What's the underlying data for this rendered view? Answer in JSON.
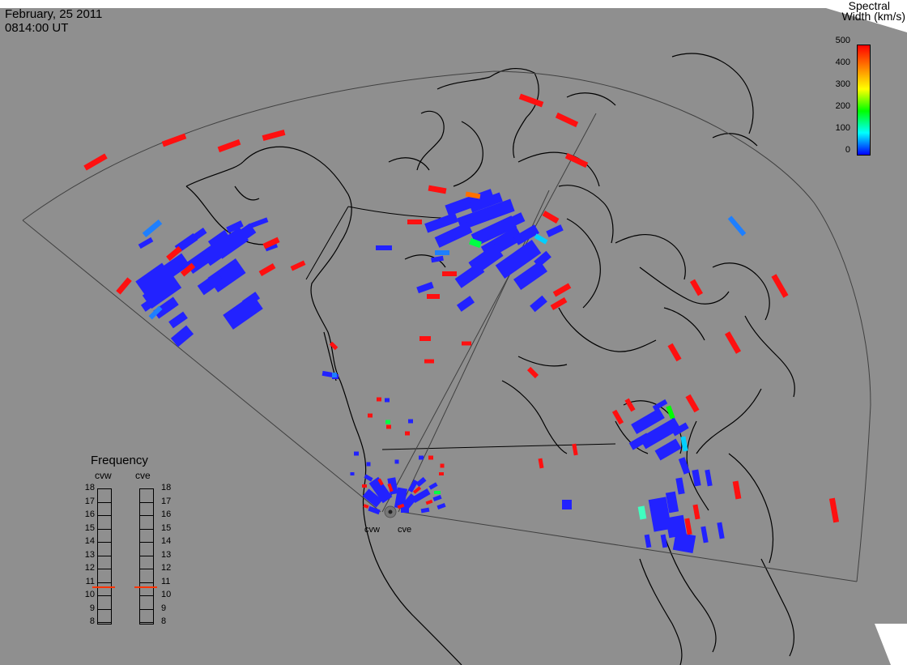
{
  "header": {
    "date": "February, 25 2011",
    "time": "0814:00 UT"
  },
  "colorbar": {
    "title_line1": "Spectral",
    "title_line2": "Width (km/s)",
    "ticks": [
      "500",
      "400",
      "300",
      "200",
      "100",
      "0"
    ],
    "colors": [
      "#ff0000",
      "#ff8000",
      "#ffff00",
      "#00ff00",
      "#00ffff",
      "#0000ff"
    ]
  },
  "frequency": {
    "title": "Frequency",
    "radars": [
      "cvw",
      "cve"
    ],
    "ticks": [
      "18",
      "17",
      "16",
      "15",
      "14",
      "13",
      "12",
      "11",
      "10",
      "9",
      "8"
    ],
    "cvw_value": 11,
    "cve_value": 11,
    "marker_color": "#ff3300"
  },
  "sites": {
    "cvw": "cvw",
    "cve": "cve"
  },
  "map": {
    "background": "#8f8f8f",
    "scatter_color": "#2222ff",
    "high_width_color": "#ff1010",
    "coastline_color": "#000000"
  }
}
